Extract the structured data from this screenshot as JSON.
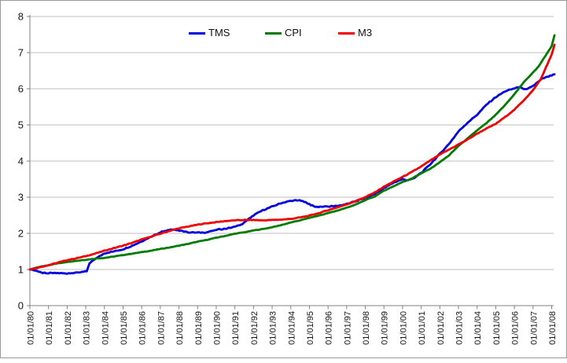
{
  "chart_data": {
    "type": "line",
    "title": "",
    "xlabel": "",
    "ylabel": "",
    "ylim": [
      0,
      8
    ],
    "y_ticks": [
      0,
      1,
      2,
      3,
      4,
      5,
      6,
      7,
      8
    ],
    "grid": "horizontal",
    "legend_position": "top-center",
    "x_tick_labels": [
      "01/01/80",
      "01/01/81",
      "01/01/82",
      "01/01/83",
      "01/01/84",
      "01/01/85",
      "01/01/86",
      "01/01/87",
      "01/01/88",
      "01/01/89",
      "01/01/90",
      "01/01/91",
      "01/01/92",
      "01/01/93",
      "01/01/94",
      "01/01/95",
      "01/01/96",
      "01/01/97",
      "01/01/98",
      "01/01/99",
      "01/01/00",
      "01/01/01",
      "01/01/02",
      "01/01/03",
      "01/01/04",
      "01/01/05",
      "01/01/06",
      "01/01/07",
      "01/01/08"
    ],
    "x_unit": "years since 01/01/80, all series indexed to 1.0 at start",
    "series": [
      {
        "name": "TMS",
        "color": "#0000DD",
        "points": [
          [
            0,
            1.0
          ],
          [
            0.3,
            0.96
          ],
          [
            0.7,
            0.91
          ],
          [
            1,
            0.9
          ],
          [
            1.5,
            0.9
          ],
          [
            2,
            0.89
          ],
          [
            2.4,
            0.91
          ],
          [
            2.8,
            0.94
          ],
          [
            3.05,
            0.96
          ],
          [
            3.2,
            1.18
          ],
          [
            3.45,
            1.28
          ],
          [
            3.7,
            1.36
          ],
          [
            4,
            1.45
          ],
          [
            4.5,
            1.5
          ],
          [
            5,
            1.56
          ],
          [
            5.5,
            1.66
          ],
          [
            6,
            1.78
          ],
          [
            6.5,
            1.91
          ],
          [
            7,
            2.03
          ],
          [
            7.4,
            2.09
          ],
          [
            7.8,
            2.11
          ],
          [
            8.1,
            2.07
          ],
          [
            8.5,
            2.03
          ],
          [
            9,
            2.02
          ],
          [
            9.5,
            2.03
          ],
          [
            9.8,
            2.07
          ],
          [
            10,
            2.1
          ],
          [
            10.5,
            2.13
          ],
          [
            11,
            2.18
          ],
          [
            11.4,
            2.26
          ],
          [
            11.7,
            2.38
          ],
          [
            12,
            2.5
          ],
          [
            12.5,
            2.64
          ],
          [
            13,
            2.74
          ],
          [
            13.5,
            2.84
          ],
          [
            14,
            2.9
          ],
          [
            14.4,
            2.92
          ],
          [
            14.8,
            2.86
          ],
          [
            15,
            2.8
          ],
          [
            15.4,
            2.73
          ],
          [
            16,
            2.74
          ],
          [
            16.5,
            2.76
          ],
          [
            17,
            2.81
          ],
          [
            17.5,
            2.89
          ],
          [
            18,
            2.98
          ],
          [
            18.5,
            3.09
          ],
          [
            19,
            3.25
          ],
          [
            19.5,
            3.4
          ],
          [
            20,
            3.5
          ],
          [
            20.3,
            3.47
          ],
          [
            20.6,
            3.53
          ],
          [
            21,
            3.67
          ],
          [
            21.5,
            3.92
          ],
          [
            22,
            4.2
          ],
          [
            22.5,
            4.48
          ],
          [
            23,
            4.82
          ],
          [
            23.5,
            5.07
          ],
          [
            24,
            5.28
          ],
          [
            24.5,
            5.56
          ],
          [
            25,
            5.77
          ],
          [
            25.5,
            5.93
          ],
          [
            26,
            6.01
          ],
          [
            26.3,
            6.05
          ],
          [
            26.6,
            5.98
          ],
          [
            27,
            6.08
          ],
          [
            27.5,
            6.28
          ],
          [
            28,
            6.37
          ],
          [
            28.15,
            6.4
          ]
        ]
      },
      {
        "name": "CPI",
        "color": "#007A00",
        "points": [
          [
            0,
            1.0
          ],
          [
            0.5,
            1.07
          ],
          [
            1,
            1.12
          ],
          [
            1.5,
            1.17
          ],
          [
            2,
            1.21
          ],
          [
            2.5,
            1.24
          ],
          [
            3,
            1.27
          ],
          [
            3.5,
            1.3
          ],
          [
            4,
            1.32
          ],
          [
            4.5,
            1.36
          ],
          [
            5,
            1.4
          ],
          [
            5.5,
            1.44
          ],
          [
            6,
            1.48
          ],
          [
            6.5,
            1.52
          ],
          [
            7,
            1.57
          ],
          [
            7.5,
            1.61
          ],
          [
            8,
            1.66
          ],
          [
            8.5,
            1.71
          ],
          [
            9,
            1.77
          ],
          [
            9.5,
            1.82
          ],
          [
            10,
            1.88
          ],
          [
            10.5,
            1.93
          ],
          [
            11,
            1.99
          ],
          [
            11.5,
            2.03
          ],
          [
            12,
            2.08
          ],
          [
            12.5,
            2.12
          ],
          [
            13,
            2.17
          ],
          [
            13.5,
            2.23
          ],
          [
            14,
            2.3
          ],
          [
            14.5,
            2.36
          ],
          [
            15,
            2.43
          ],
          [
            15.5,
            2.49
          ],
          [
            16,
            2.56
          ],
          [
            16.5,
            2.63
          ],
          [
            17,
            2.71
          ],
          [
            17.5,
            2.8
          ],
          [
            18,
            2.92
          ],
          [
            18.5,
            3.02
          ],
          [
            19,
            3.18
          ],
          [
            19.5,
            3.3
          ],
          [
            20,
            3.42
          ],
          [
            20.5,
            3.52
          ],
          [
            21,
            3.66
          ],
          [
            21.5,
            3.79
          ],
          [
            22,
            3.97
          ],
          [
            22.5,
            4.16
          ],
          [
            23,
            4.42
          ],
          [
            23.5,
            4.63
          ],
          [
            24,
            4.85
          ],
          [
            24.5,
            5.05
          ],
          [
            25,
            5.28
          ],
          [
            25.5,
            5.55
          ],
          [
            26,
            5.85
          ],
          [
            26.5,
            6.18
          ],
          [
            27,
            6.45
          ],
          [
            27.3,
            6.62
          ],
          [
            27.6,
            6.86
          ],
          [
            28,
            7.18
          ],
          [
            28.15,
            7.48
          ]
        ]
      },
      {
        "name": "M3",
        "color": "#EE0000",
        "points": [
          [
            0,
            1.0
          ],
          [
            0.5,
            1.06
          ],
          [
            1,
            1.12
          ],
          [
            1.5,
            1.19
          ],
          [
            2,
            1.26
          ],
          [
            2.5,
            1.31
          ],
          [
            3,
            1.37
          ],
          [
            3.5,
            1.44
          ],
          [
            4,
            1.52
          ],
          [
            4.5,
            1.59
          ],
          [
            5,
            1.66
          ],
          [
            5.5,
            1.74
          ],
          [
            6,
            1.83
          ],
          [
            6.5,
            1.91
          ],
          [
            7,
            1.99
          ],
          [
            7.5,
            2.07
          ],
          [
            8,
            2.14
          ],
          [
            8.5,
            2.19
          ],
          [
            9,
            2.24
          ],
          [
            9.5,
            2.28
          ],
          [
            10,
            2.31
          ],
          [
            10.5,
            2.34
          ],
          [
            11,
            2.36
          ],
          [
            11.5,
            2.37
          ],
          [
            12,
            2.37
          ],
          [
            12.5,
            2.36
          ],
          [
            13,
            2.37
          ],
          [
            13.5,
            2.38
          ],
          [
            14,
            2.4
          ],
          [
            14.5,
            2.44
          ],
          [
            15,
            2.49
          ],
          [
            15.5,
            2.56
          ],
          [
            16,
            2.64
          ],
          [
            16.5,
            2.72
          ],
          [
            17,
            2.8
          ],
          [
            17.5,
            2.9
          ],
          [
            18,
            3.0
          ],
          [
            18.5,
            3.13
          ],
          [
            19,
            3.29
          ],
          [
            19.5,
            3.43
          ],
          [
            20,
            3.56
          ],
          [
            20.5,
            3.7
          ],
          [
            21,
            3.85
          ],
          [
            21.5,
            4.02
          ],
          [
            22,
            4.18
          ],
          [
            22.5,
            4.32
          ],
          [
            23,
            4.46
          ],
          [
            23.5,
            4.6
          ],
          [
            24,
            4.76
          ],
          [
            24.5,
            4.9
          ],
          [
            25,
            5.03
          ],
          [
            25.5,
            5.22
          ],
          [
            26,
            5.42
          ],
          [
            26.5,
            5.68
          ],
          [
            27,
            5.96
          ],
          [
            27.4,
            6.25
          ],
          [
            27.7,
            6.6
          ],
          [
            28,
            6.95
          ],
          [
            28.15,
            7.22
          ]
        ]
      }
    ]
  },
  "legend": {
    "items": [
      {
        "label": "TMS",
        "color": "#0000DD"
      },
      {
        "label": "CPI",
        "color": "#007A00"
      },
      {
        "label": "M3",
        "color": "#EE0000"
      }
    ]
  }
}
